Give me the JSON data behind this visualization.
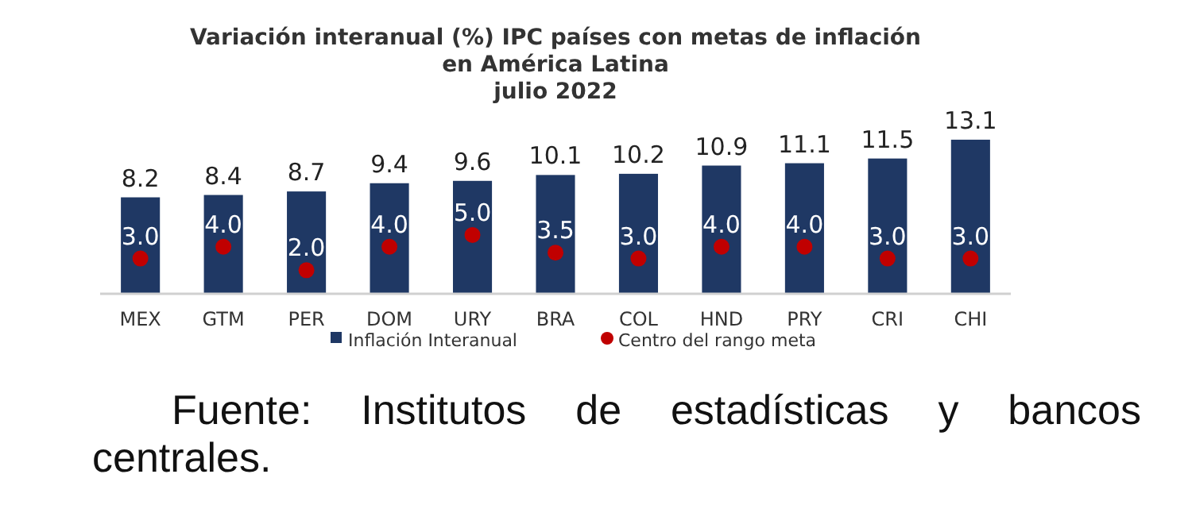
{
  "chart_data": {
    "type": "bar",
    "title": "Variación interanual (%) IPC países con metas de inflación\nen América Latina\njulio 2022",
    "categories": [
      "MEX",
      "GTM",
      "PER",
      "DOM",
      "URY",
      "BRA",
      "COL",
      "HND",
      "PRY",
      "CRI",
      "CHI"
    ],
    "series": [
      {
        "name": "Inflación Interanual",
        "color": "#1f3864",
        "values": [
          8.2,
          8.4,
          8.7,
          9.4,
          9.6,
          10.1,
          10.2,
          10.9,
          11.1,
          11.5,
          13.1
        ]
      },
      {
        "name": "Centro del rango meta",
        "type": "scatter",
        "color": "#c00000",
        "x": [
          "MEX",
          "GTM",
          "PER",
          "DOM",
          "URY",
          "BRA",
          "COL",
          "HND",
          "PRY",
          "CRI",
          "CHI"
        ],
        "values": [
          3.0,
          4.0,
          2.0,
          4.0,
          5.0,
          3.5,
          3.0,
          4.0,
          4.0,
          3.0,
          3.0
        ],
        "value_labels": [
          "3.0",
          "4.0",
          "2.0",
          "4.0",
          "5.0",
          "3.5",
          "3.0",
          "4.0",
          "4.0",
          "3.0",
          "3.0"
        ]
      }
    ],
    "value_labels": [
      "8.2",
      "8.4",
      "8.7",
      "9.4",
      "9.6",
      "10.1",
      "10.2",
      "10.9",
      "11.1",
      "11.5",
      "13.1"
    ],
    "legend": "bottom",
    "marker": "circle",
    "grid": false,
    "tick_labels": "x",
    "ylim": [
      0,
      13.5
    ],
    "annotations": [
      "Fuente: Institutos de estadísticas y bancos centrales."
    ]
  }
}
